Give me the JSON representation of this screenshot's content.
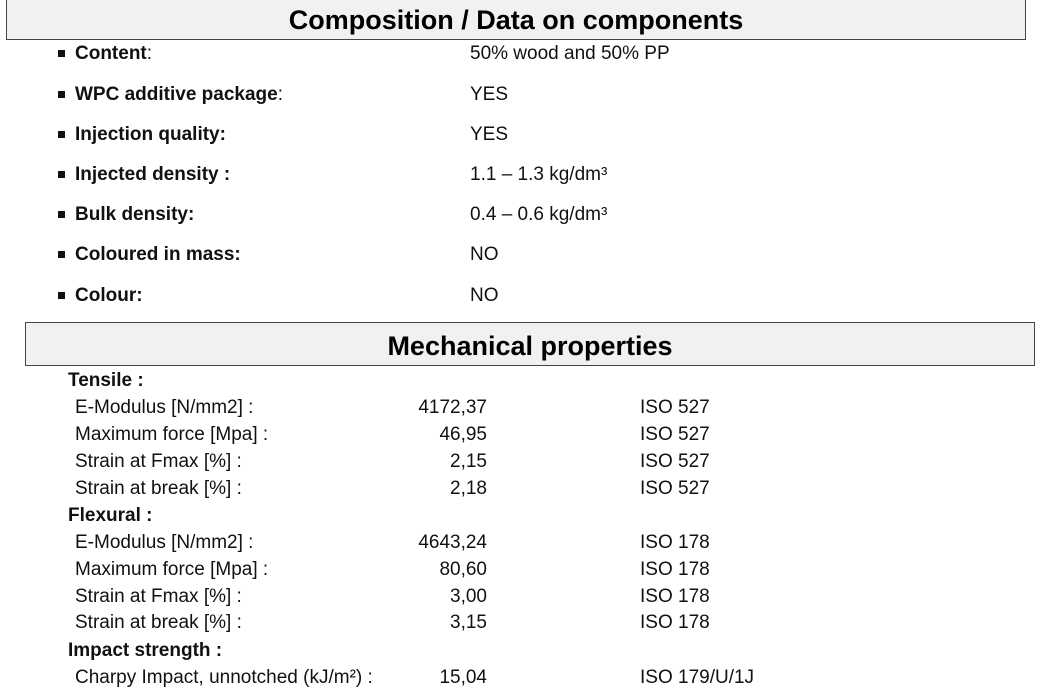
{
  "composition": {
    "title": "Composition / Data on components",
    "items": [
      {
        "label": "Content",
        "suffix": ":",
        "value": "50% wood and 50% PP"
      },
      {
        "label": "WPC additive package",
        "suffix": ":",
        "value": "YES"
      },
      {
        "label": "Injection quality:",
        "suffix": "",
        "value": "YES"
      },
      {
        "label": "Injected density :",
        "suffix": "",
        "value": "1.1 – 1.3 kg/dm³"
      },
      {
        "label": "Bulk density:",
        "suffix": "",
        "value": "0.4 – 0.6 kg/dm³"
      },
      {
        "label": "Coloured in mass:",
        "suffix": "",
        "value": "NO"
      },
      {
        "label": "Colour:",
        "suffix": "",
        "value": "NO"
      }
    ]
  },
  "mechanical": {
    "title": "Mechanical properties",
    "groups": [
      {
        "title": "Tensile :",
        "rows": [
          {
            "label": "E-Modulus [N/mm2] :",
            "value": "4172,37",
            "standard": "ISO 527"
          },
          {
            "label": "Maximum force [Mpa] :",
            "value": "46,95",
            "standard": "ISO 527"
          },
          {
            "label": "Strain at Fmax [%] :",
            "value": "2,15",
            "standard": "ISO 527"
          },
          {
            "label": "Strain at break [%] :",
            "value": "2,18",
            "standard": "ISO 527"
          }
        ]
      },
      {
        "title": "Flexural :",
        "rows": [
          {
            "label": "E-Modulus [N/mm2] :",
            "value": "4643,24",
            "standard": "ISO 178"
          },
          {
            "label": "Maximum force [Mpa] :",
            "value": "80,60",
            "standard": "ISO 178"
          },
          {
            "label": "Strain at Fmax [%] :",
            "value": "3,00",
            "standard": "ISO 178"
          },
          {
            "label": "Strain at break [%] :",
            "value": "3,15",
            "standard": "ISO 178"
          }
        ]
      },
      {
        "title": "Impact strength :",
        "rows": [
          {
            "label": "Charpy Impact, unnotched (kJ/m²)  :",
            "value": "15,04",
            "standard": "ISO 179/U/1J"
          }
        ]
      }
    ]
  }
}
